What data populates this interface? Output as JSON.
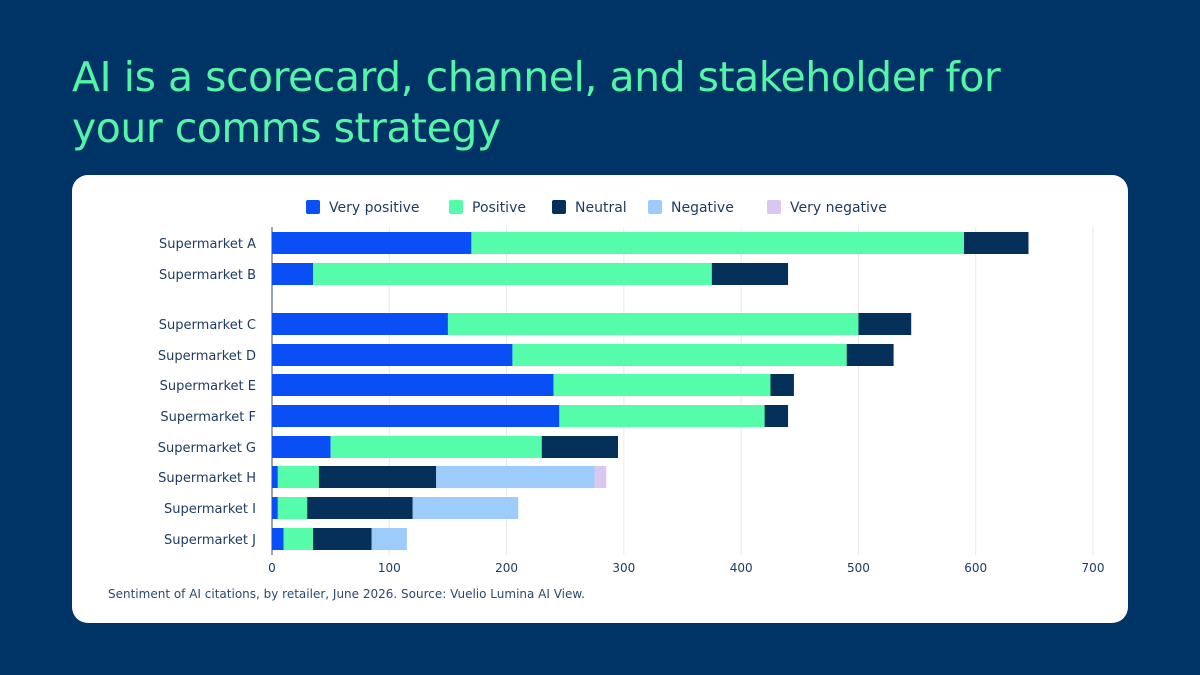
{
  "headline": "AI is a scorecard, channel, and stakeholder for your comms strategy",
  "caption": "Sentiment of AI citations, by retailer, June 2026. Source: Vuelio Lumina AI View.",
  "colors": {
    "background": "#003366",
    "headline": "#55f5a8",
    "card": "#ffffff"
  },
  "chart_data": {
    "type": "bar",
    "orientation": "horizontal",
    "stacked": true,
    "title": "",
    "xlabel": "",
    "ylabel": "",
    "xlim": [
      0,
      700
    ],
    "xticks": [
      0,
      100,
      200,
      300,
      400,
      500,
      600,
      700
    ],
    "grid": "vertical",
    "legend_position": "top",
    "categories": [
      "Supermarket  A",
      "Supermarket  B",
      "Supermarket  C",
      "Supermarket  D",
      "Supermarket  E",
      "Supermarket  F",
      "Supermarket  G",
      "Supermarket  H",
      "Supermarket  I",
      "Supermarket  J"
    ],
    "series": [
      {
        "name": "Very positive",
        "color": "#0a4ff5",
        "values": [
          170,
          35,
          150,
          205,
          240,
          245,
          50,
          5,
          5,
          10
        ]
      },
      {
        "name": "Positive",
        "color": "#55fdab",
        "values": [
          420,
          340,
          350,
          285,
          185,
          175,
          180,
          35,
          25,
          25
        ]
      },
      {
        "name": "Neutral",
        "color": "#05305a",
        "values": [
          55,
          65,
          45,
          40,
          20,
          20,
          65,
          100,
          90,
          50
        ]
      },
      {
        "name": "Negative",
        "color": "#9dcbfa",
        "values": [
          0,
          0,
          0,
          0,
          0,
          0,
          0,
          135,
          90,
          30
        ]
      },
      {
        "name": "Very negative",
        "color": "#d9c7f0",
        "values": [
          0,
          0,
          0,
          0,
          0,
          0,
          0,
          10,
          0,
          0
        ]
      }
    ]
  }
}
